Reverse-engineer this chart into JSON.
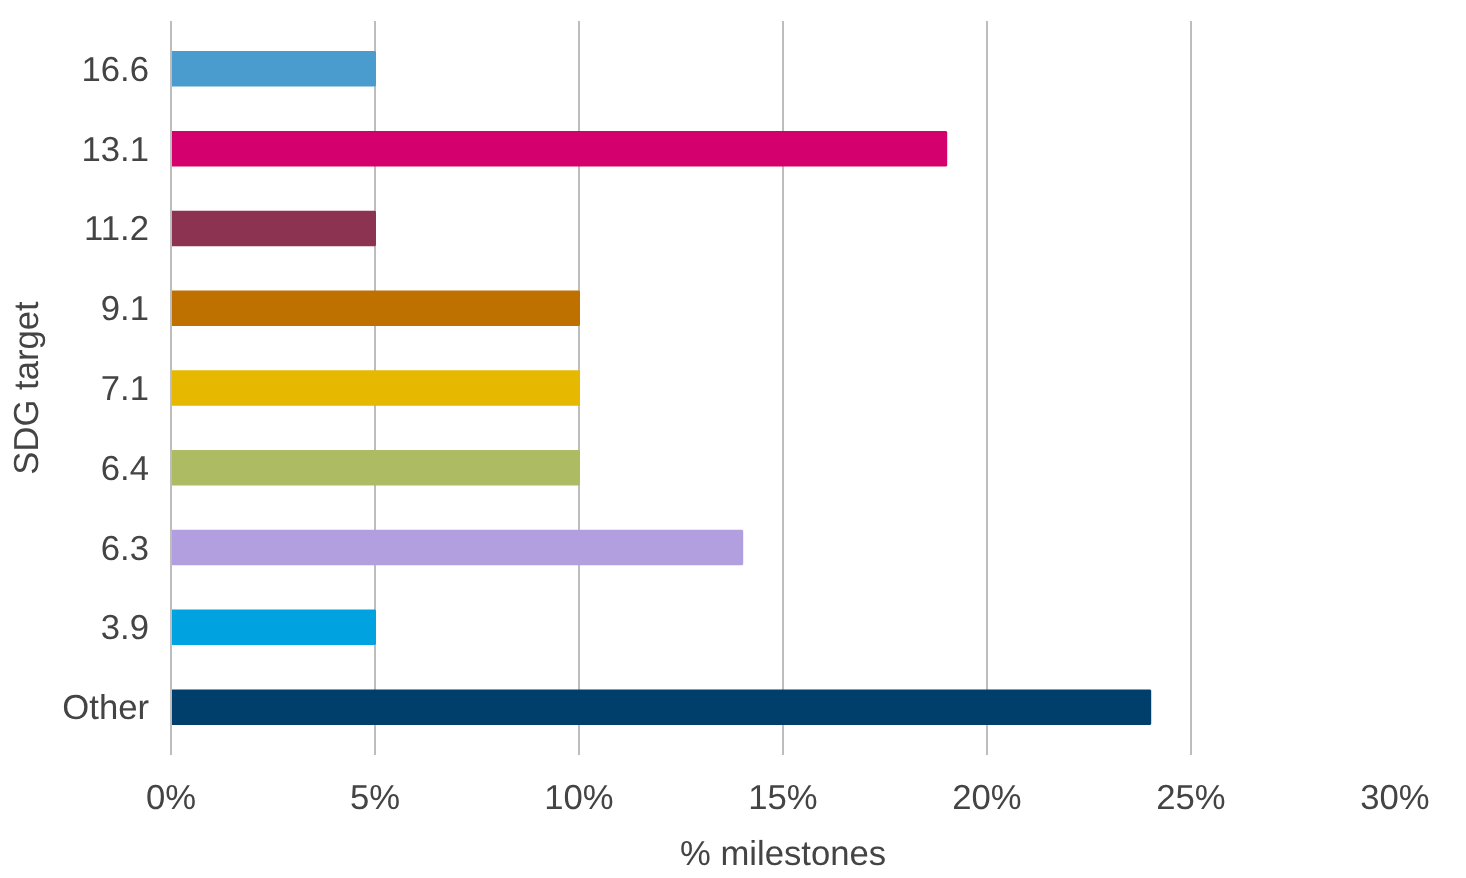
{
  "chart_data": {
    "type": "bar",
    "orientation": "horizontal",
    "xlabel": "% milestones",
    "ylabel": "SDG target",
    "categories": [
      "16.6",
      "13.1",
      "11.2",
      "9.1",
      "7.1",
      "6.4",
      "6.3",
      "3.9",
      "Other"
    ],
    "values": [
      5,
      19,
      5,
      10,
      10,
      10,
      14,
      5,
      24
    ],
    "colors": [
      "#4a9ccf",
      "#d4006e",
      "#8b3350",
      "#bf7100",
      "#e6b800",
      "#adbb63",
      "#b19fe0",
      "#00a3e0",
      "#003f6b"
    ],
    "xlim": [
      0,
      30
    ],
    "xticks": [
      {
        "value": 0,
        "label": "0%"
      },
      {
        "value": 5,
        "label": "5%"
      },
      {
        "value": 10,
        "label": "10%"
      },
      {
        "value": 15,
        "label": "15%"
      },
      {
        "value": 20,
        "label": "20%"
      },
      {
        "value": 25,
        "label": "25%"
      },
      {
        "value": 30,
        "label": "30%"
      }
    ],
    "grid": "x"
  }
}
